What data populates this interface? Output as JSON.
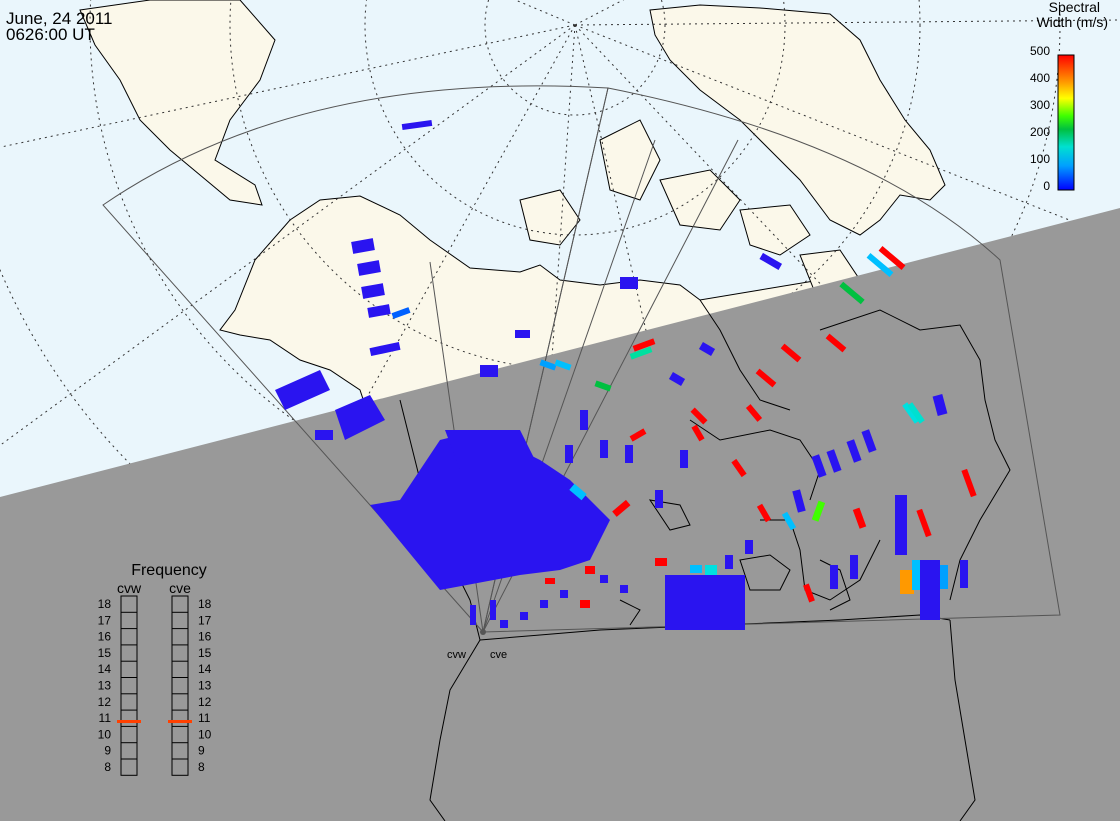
{
  "header": {
    "date": "June, 24 2011",
    "time": "0626:00 UT"
  },
  "colorbar": {
    "title_line1": "Spectral",
    "title_line2": "Width (m/s)",
    "ticks": [
      "500",
      "400",
      "300",
      "200",
      "100",
      "0"
    ],
    "range": [
      0,
      500
    ],
    "colors": [
      "#0000ff",
      "#00a0ff",
      "#00e0d0",
      "#00c040",
      "#40ff00",
      "#ffff00",
      "#ff9900",
      "#ff0000"
    ]
  },
  "frequency_panel": {
    "title": "Frequency",
    "radars": [
      {
        "name": "cvw",
        "value_mhz": 10.8
      },
      {
        "name": "cve",
        "value_mhz": 10.8
      }
    ],
    "scale": [
      "18",
      "17",
      "16",
      "15",
      "14",
      "13",
      "12",
      "11",
      "10",
      "9",
      "8"
    ],
    "marker_color": "#ff4000"
  },
  "radars": [
    {
      "code": "cvw"
    },
    {
      "code": "cve"
    }
  ],
  "map": {
    "ocean_color": "#eaf6fc",
    "land_color": "#fbf8ea",
    "night_color": "#999999",
    "scatter_color": "#2a14f0"
  }
}
